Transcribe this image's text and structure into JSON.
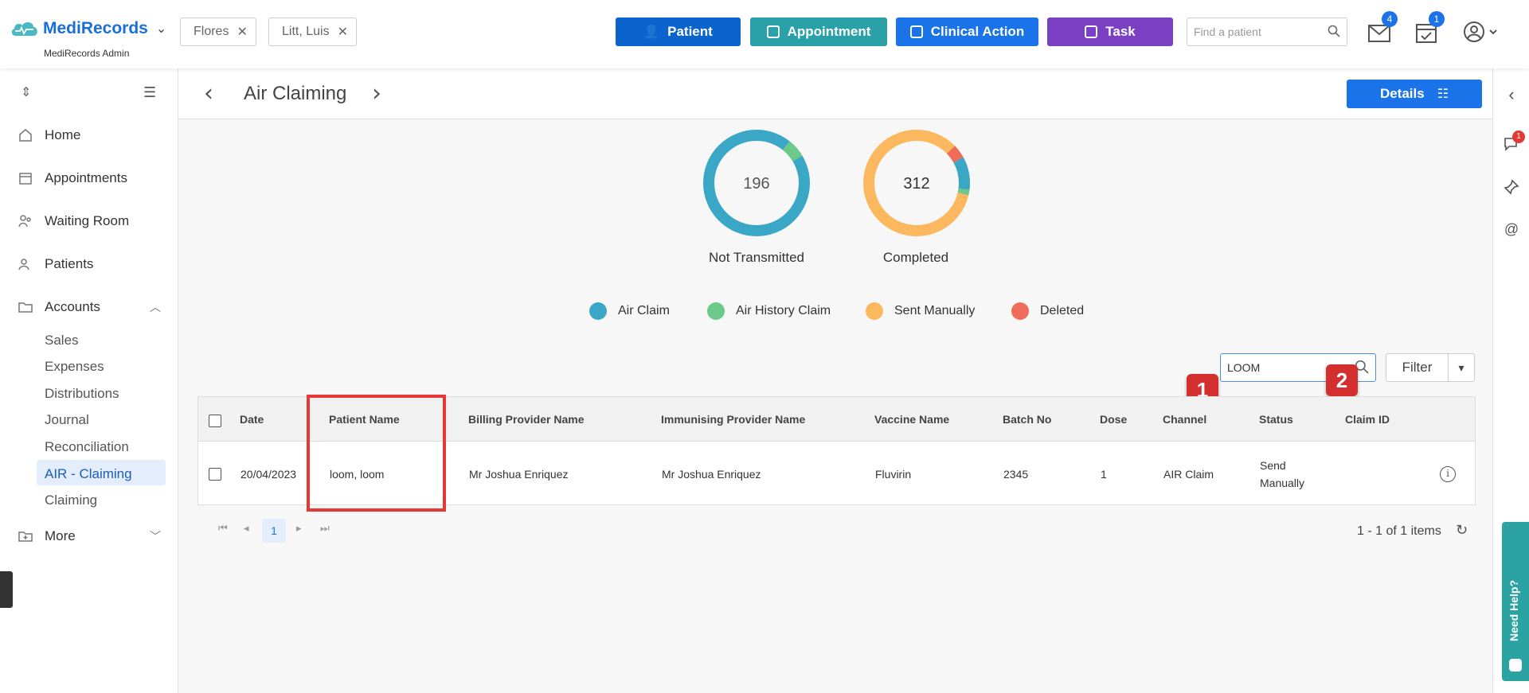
{
  "app": {
    "brand": "MediRecords",
    "subtitle": "MediRecords Admin"
  },
  "patient_tabs": [
    {
      "label": "Flores"
    },
    {
      "label": "Litt, Luis"
    }
  ],
  "actions": {
    "patient": {
      "label": "Patient",
      "color": "#0b63ce"
    },
    "appointment": {
      "label": "Appointment",
      "color": "#2aa0a8"
    },
    "clinical": {
      "label": "Clinical Action",
      "color": "#1a73e8"
    },
    "task": {
      "label": "Task",
      "color": "#7b3fc4"
    }
  },
  "find_patient": {
    "placeholder": "Find a patient"
  },
  "notifications": {
    "mail_count": "4",
    "calendar_count": "1"
  },
  "sidebar": {
    "items": [
      {
        "label": "Home",
        "icon": "home-icon"
      },
      {
        "label": "Appointments",
        "icon": "calendar-icon"
      },
      {
        "label": "Waiting Room",
        "icon": "waiting-room-icon"
      },
      {
        "label": "Patients",
        "icon": "patients-icon"
      },
      {
        "label": "Accounts",
        "icon": "folder-icon"
      }
    ],
    "accounts_sub": [
      "Sales",
      "Expenses",
      "Distributions",
      "Journal",
      "Reconciliation",
      "AIR - Claiming",
      "Claiming"
    ],
    "more": "More"
  },
  "page": {
    "title": "Air Claiming",
    "details_label": "Details"
  },
  "summary": {
    "not_transmitted": {
      "value": "196",
      "label": "Not Transmitted"
    },
    "completed": {
      "value": "312",
      "label": "Completed"
    }
  },
  "legend": [
    {
      "label": "Air Claim",
      "color": "#3ba7c7"
    },
    {
      "label": "Air History Claim",
      "color": "#6cc98a"
    },
    {
      "label": "Sent Manually",
      "color": "#fbb85e"
    },
    {
      "label": "Deleted",
      "color": "#ef6c5a"
    }
  ],
  "search": {
    "value": "LOOM"
  },
  "filter_label": "Filter",
  "markers": [
    "1",
    "2"
  ],
  "table": {
    "headers": [
      "Date",
      "Patient Name",
      "Billing Provider Name",
      "Immunising Provider Name",
      "Vaccine Name",
      "Batch No",
      "Dose",
      "Channel",
      "Status",
      "Claim ID"
    ],
    "rows": [
      {
        "date": "20/04/2023",
        "patient": "loom, loom",
        "billing": "Mr Joshua Enriquez",
        "immunising": "Mr Joshua Enriquez",
        "vaccine": "Fluvirin",
        "batch": "2345",
        "dose": "1",
        "channel": "AIR Claim",
        "status_line1": "Send",
        "status_line2": "Manually",
        "claim_id": ""
      }
    ]
  },
  "pager": {
    "current": "1",
    "items": "1 - 1 of 1 items"
  },
  "help": {
    "label": "Need Help?"
  },
  "rail": {
    "chat_badge": "1"
  }
}
